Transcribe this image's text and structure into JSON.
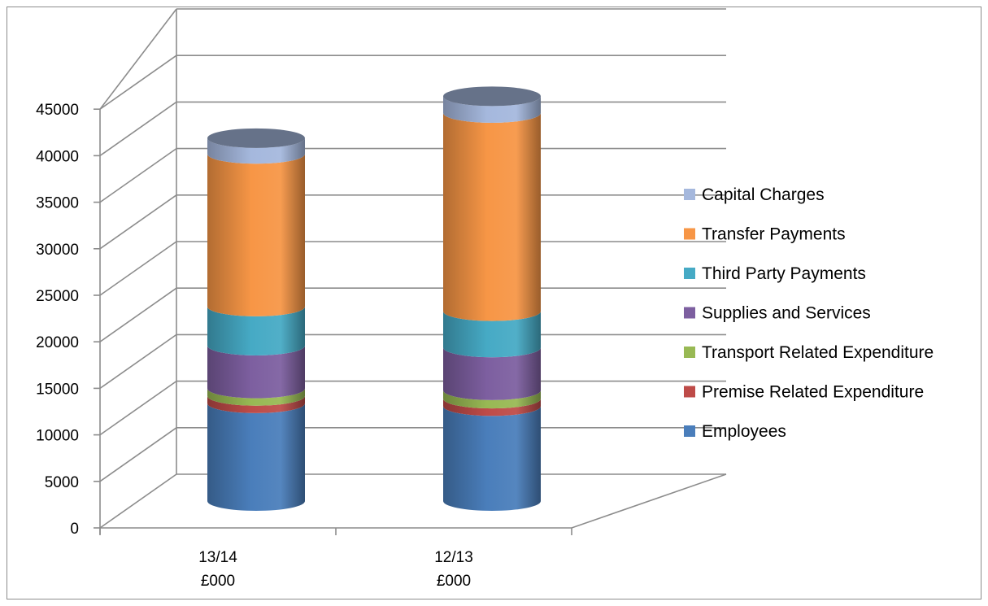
{
  "chart_data": {
    "type": "bar",
    "style": "3d-stacked-cylinder",
    "categories": [
      {
        "line1": "13/14",
        "line2": "£000"
      },
      {
        "line1": "12/13",
        "line2": "£000"
      }
    ],
    "series": [
      {
        "name": "Employees",
        "color": "#4a7ebb",
        "values": [
          10500,
          10200
        ]
      },
      {
        "name": "Premise Related Expenditure",
        "color": "#be4b48",
        "values": [
          800,
          800
        ]
      },
      {
        "name": "Transport Related Expenditure",
        "color": "#98b954",
        "values": [
          800,
          900
        ]
      },
      {
        "name": "Supplies and Services",
        "color": "#7d5fa0",
        "values": [
          4600,
          4600
        ]
      },
      {
        "name": "Third Party Payments",
        "color": "#46aac5",
        "values": [
          4200,
          3900
        ]
      },
      {
        "name": "Transfer Payments",
        "color": "#f79646",
        "values": [
          16400,
          21300
        ]
      },
      {
        "name": "Capital Charges",
        "color": "#a5b8dd",
        "values": [
          1700,
          1800
        ]
      }
    ],
    "y_ticks": [
      "0",
      "5000",
      "10000",
      "15000",
      "20000",
      "25000",
      "30000",
      "35000",
      "40000",
      "45000"
    ],
    "ylim": [
      0,
      45000
    ],
    "grid": true,
    "legend_position": "right",
    "title": "",
    "xlabel": "",
    "ylabel": ""
  }
}
